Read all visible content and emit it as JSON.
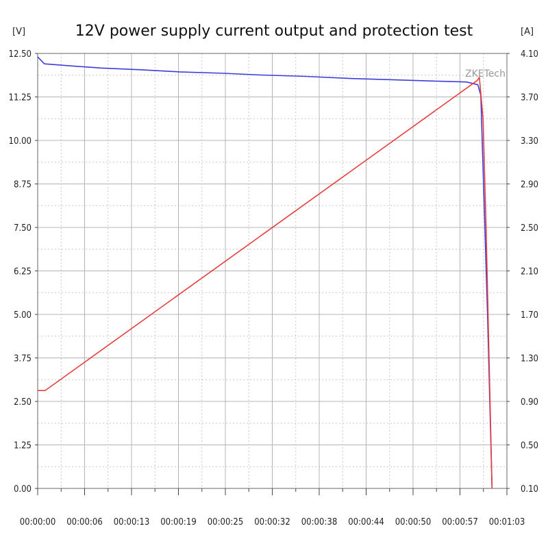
{
  "chart_data": {
    "type": "line",
    "title": "12V power supply current output and protection test",
    "left_axis": {
      "unit_label": "[V]",
      "ylim": [
        0,
        12.5
      ],
      "ticks": [
        "0.00",
        "1.25",
        "2.50",
        "3.75",
        "5.00",
        "6.25",
        "7.50",
        "8.75",
        "10.00",
        "11.25",
        "12.50"
      ]
    },
    "right_axis": {
      "unit_label": "[A]",
      "ylim": [
        0.1,
        4.1
      ],
      "ticks": [
        "0.10",
        "0.50",
        "0.90",
        "1.30",
        "1.70",
        "2.10",
        "2.50",
        "2.90",
        "3.30",
        "3.70",
        "4.10"
      ]
    },
    "x_axis": {
      "range_seconds": [
        0,
        63
      ],
      "ticks": [
        "00:00:00",
        "00:00:06",
        "00:00:13",
        "00:00:19",
        "00:00:25",
        "00:00:32",
        "00:00:38",
        "00:00:44",
        "00:00:50",
        "00:00:57",
        "00:01:03"
      ]
    },
    "grid": true,
    "watermark": "ZKETech",
    "series": [
      {
        "axis": "left",
        "color": "#3c3cdc",
        "points": [
          [
            0,
            12.4
          ],
          [
            0.9,
            12.2
          ],
          [
            4,
            12.15
          ],
          [
            8.5,
            12.08
          ],
          [
            14,
            12.03
          ],
          [
            19,
            11.97
          ],
          [
            25,
            11.93
          ],
          [
            30,
            11.88
          ],
          [
            36,
            11.84
          ],
          [
            42,
            11.78
          ],
          [
            48,
            11.74
          ],
          [
            54,
            11.7
          ],
          [
            57.6,
            11.68
          ],
          [
            59.1,
            11.6
          ],
          [
            59.5,
            11.3
          ],
          [
            60.4,
            5.0
          ],
          [
            61.0,
            0
          ]
        ]
      },
      {
        "axis": "right",
        "color": "#e83c3c",
        "points": [
          [
            0,
            1.0
          ],
          [
            1,
            1.0
          ],
          [
            59.0,
            3.85
          ],
          [
            59.3,
            3.88
          ],
          [
            59.8,
            3.5
          ],
          [
            60.2,
            2.5
          ],
          [
            61.0,
            0.1
          ]
        ]
      }
    ]
  }
}
